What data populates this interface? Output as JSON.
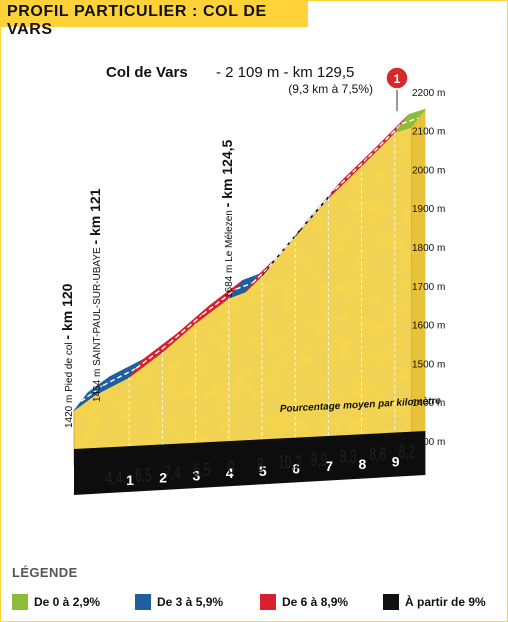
{
  "header": {
    "title": "PROFIL PARTICULIER : COL DE VARS"
  },
  "chart_data": {
    "type": "area",
    "summit": {
      "name": "Col de Vars",
      "detail": "- 2 109 m - km 129,5",
      "sub": "(9,3 km à 7,5%)",
      "marker": "1"
    },
    "ylim": [
      1300,
      2200
    ],
    "yticks": [
      "1300 m",
      "1400 m",
      "1500 m",
      "1600 m",
      "1700 m",
      "1800 m",
      "1900 m",
      "2000 m",
      "2100 m",
      "2200 m"
    ],
    "km_labels": [
      "1",
      "2",
      "3",
      "4",
      "5",
      "6",
      "7",
      "8",
      "9"
    ],
    "gradients": [
      "4,4",
      "6,5",
      "7,4",
      "6,5",
      "0",
      "8",
      "10,2",
      "9,9",
      "8,3",
      "8,6",
      "8,2"
    ],
    "profile": {
      "x": [
        120,
        121,
        122,
        123,
        124,
        124.5,
        125,
        126,
        127,
        128,
        129,
        129.5
      ],
      "y": [
        1420,
        1464,
        1529,
        1603,
        1668,
        1684,
        1725,
        1827,
        1926,
        2009,
        2095,
        2109
      ]
    },
    "note": "Pourcentage moyen par kilomètre",
    "annotations": [
      {
        "elev": "1420 m Pied de col",
        "km": "- km 120"
      },
      {
        "elev": "1464 m SAINT-PAUL-SUR-UBAYE",
        "km": "- km 121"
      },
      {
        "elev": "1684 m Le Mélezen",
        "km": "- km 124,5"
      }
    ],
    "colors": {
      "yellow": "#f7d54a",
      "green": "#8cbc3a",
      "blue": "#1f5f9e",
      "red": "#d8202e",
      "black": "#111111",
      "base": "#0d0d0d"
    }
  },
  "legend": {
    "title": "LÉGENDE",
    "items": [
      {
        "label": "De 0 à 2,9%",
        "color": "#8cbc3a"
      },
      {
        "label": "De 3 à 5,9%",
        "color": "#1f5f9e"
      },
      {
        "label": "De 6 à 8,9%",
        "color": "#d8202e"
      },
      {
        "label": "À partir de 9%",
        "color": "#111111"
      }
    ]
  }
}
